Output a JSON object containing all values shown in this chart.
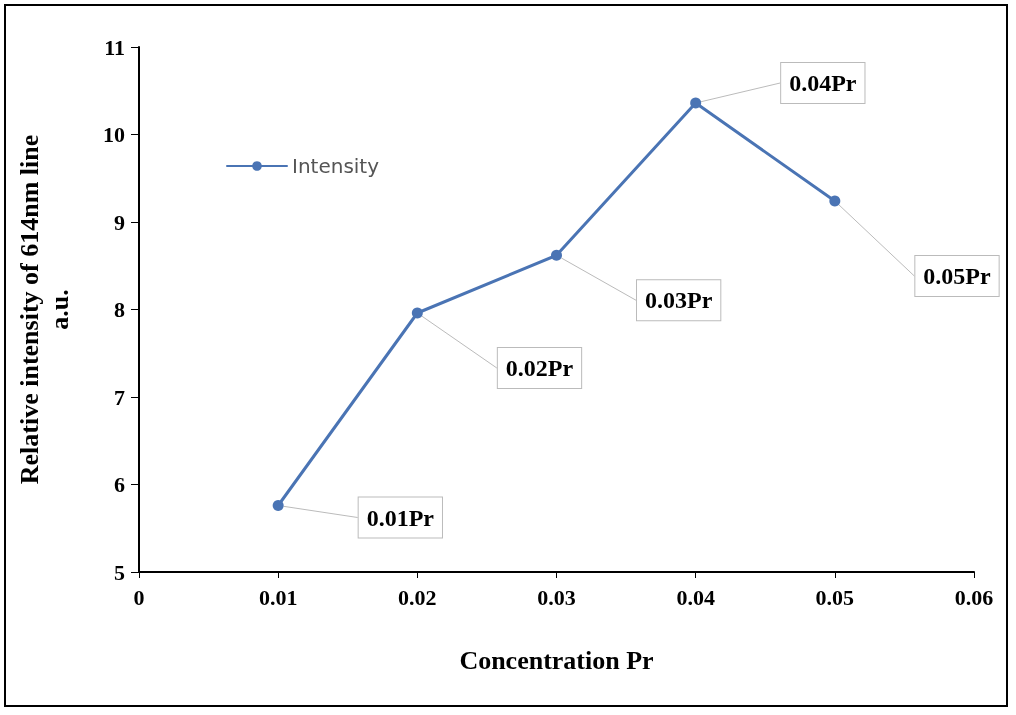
{
  "chart_data": {
    "type": "line",
    "xlabel": "Concentration Pr",
    "ylabel": "Relative intensity of 614nm line\na.u.",
    "x": [
      0.01,
      0.02,
      0.03,
      0.04,
      0.05
    ],
    "series": [
      {
        "name": "Intensity",
        "color": "#4a74b4",
        "values": [
          5.76,
          7.96,
          8.62,
          10.36,
          9.24
        ]
      }
    ],
    "xlim": [
      0,
      0.06
    ],
    "xticks": [
      0,
      0.01,
      0.02,
      0.03,
      0.04,
      0.05,
      0.06
    ],
    "ylim": [
      5,
      11
    ],
    "yticks": [
      5,
      6,
      7,
      8,
      9,
      10,
      11
    ],
    "grid": false,
    "legend": "top left",
    "marker": "circle",
    "line_style": "solid",
    "annotations": [
      {
        "text": "0.01Pr",
        "x": 0.01,
        "y": 5.76
      },
      {
        "text": "0.02Pr",
        "x": 0.02,
        "y": 7.96
      },
      {
        "text": "0.03Pr",
        "x": 0.03,
        "y": 8.62
      },
      {
        "text": "0.04Pr",
        "x": 0.04,
        "y": 10.36
      },
      {
        "text": "0.05Pr",
        "x": 0.05,
        "y": 9.24
      }
    ]
  }
}
